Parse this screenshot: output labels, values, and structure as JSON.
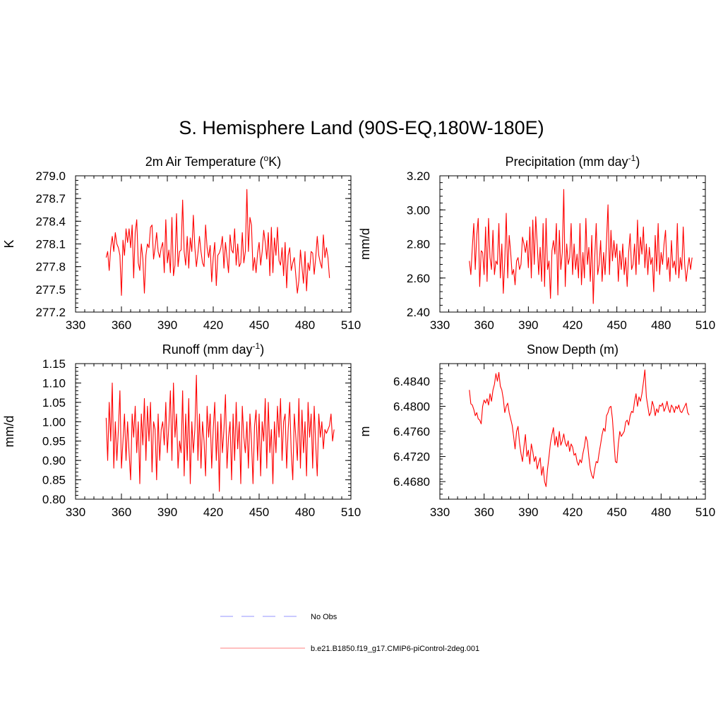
{
  "title": "S. Hemisphere Land (90S-EQ,180W-180E)",
  "legend": [
    {
      "label": "No Obs",
      "color": "#aaaaff",
      "dash": true
    },
    {
      "label": "b.e21.B1850.f19_g17.CMIP6-piControl-2deg.001",
      "color": "#ff9999",
      "dash": false
    }
  ],
  "series_color": "#ff0000",
  "chart_data": [
    {
      "type": "line",
      "title_main": "2m Air Temperature (",
      "title_sup": "o",
      "title_end": "K)",
      "ylabel": "K",
      "xlim": [
        330,
        510
      ],
      "ylim": [
        277.2,
        279.0
      ],
      "xticks": [
        330,
        360,
        390,
        420,
        450,
        480,
        510
      ],
      "xtick_labels": [
        "330",
        "360",
        "390",
        "420",
        "450",
        "480",
        "510"
      ],
      "yticks": [
        277.2,
        277.5,
        277.8,
        278.1,
        278.4,
        278.7,
        279.0
      ],
      "ytick_labels": [
        "277.2",
        "277.5",
        "277.8",
        "278.1",
        "278.4",
        "278.7",
        "279.0"
      ],
      "x_start": 350,
      "values": [
        277.92,
        278.0,
        277.75,
        278.05,
        278.2,
        278.0,
        278.25,
        278.1,
        278.05,
        277.95,
        277.42,
        278.15,
        277.95,
        278.3,
        278.12,
        278.3,
        278.05,
        278.35,
        277.65,
        278.25,
        278.42,
        277.85,
        277.75,
        278.1,
        277.9,
        277.45,
        277.95,
        278.1,
        278.05,
        278.32,
        278.35,
        277.9,
        278.05,
        278.25,
        278.0,
        277.92,
        278.05,
        278.12,
        277.72,
        278.42,
        277.85,
        278.02,
        277.72,
        278.45,
        277.68,
        277.82,
        278.5,
        277.8,
        278.0,
        278.02,
        278.68,
        278.0,
        277.82,
        278.2,
        277.78,
        278.18,
        278.0,
        278.48,
        278.05,
        277.8,
        277.98,
        278.2,
        278.0,
        277.85,
        277.8,
        278.35,
        278.05,
        277.92,
        278.08,
        277.6,
        277.92,
        278.12,
        277.55,
        277.95,
        277.98,
        278.05,
        278.2,
        277.78,
        278.12,
        277.92,
        277.72,
        278.22,
        278.02,
        277.98,
        278.3,
        277.82,
        278.1,
        277.8,
        277.85,
        278.25,
        277.85,
        278.0,
        278.82,
        278.0,
        278.45,
        278.35,
        277.75,
        277.92,
        277.72,
        277.98,
        278.12,
        277.82,
        278.0,
        278.28,
        278.12,
        277.9,
        278.25,
        277.68,
        278.32,
        277.72,
        278.18,
        277.95,
        278.32,
        277.88,
        277.82,
        278.05,
        277.68,
        278.12,
        277.52,
        277.95,
        278.05,
        277.75,
        277.85,
        277.92,
        277.68,
        277.45,
        277.62,
        278.02,
        277.8,
        277.58,
        278.0,
        277.48,
        277.85,
        277.75,
        278.0,
        277.98,
        277.7,
        277.92,
        278.2,
        277.95,
        277.85,
        277.78,
        278.22,
        277.92,
        278.05,
        277.92,
        277.65
      ]
    },
    {
      "type": "line",
      "title_main": "Precipitation (mm day",
      "title_sup": "-1",
      "title_end": ")",
      "ylabel": "mm/d",
      "xlim": [
        330,
        510
      ],
      "ylim": [
        2.4,
        3.2
      ],
      "xticks": [
        330,
        360,
        390,
        420,
        450,
        480,
        510
      ],
      "xtick_labels": [
        "330",
        "360",
        "390",
        "420",
        "450",
        "480",
        "510"
      ],
      "yticks": [
        2.4,
        2.6,
        2.8,
        3.0,
        3.2
      ],
      "ytick_labels": [
        "2.40",
        "2.60",
        "2.80",
        "3.00",
        "3.20"
      ],
      "x_start": 350,
      "values": [
        2.7,
        2.62,
        2.78,
        2.92,
        2.65,
        2.85,
        2.95,
        2.55,
        2.76,
        2.75,
        2.62,
        2.9,
        2.58,
        2.95,
        2.72,
        2.65,
        2.88,
        2.62,
        2.7,
        2.68,
        2.92,
        2.6,
        2.8,
        2.51,
        2.7,
        2.98,
        2.6,
        2.85,
        2.75,
        2.62,
        2.65,
        2.56,
        2.7,
        2.72,
        2.65,
        2.68,
        2.84,
        2.8,
        2.75,
        2.82,
        2.66,
        2.9,
        2.6,
        2.94,
        2.68,
        2.96,
        2.8,
        2.62,
        2.78,
        2.58,
        2.92,
        2.55,
        2.95,
        2.65,
        2.7,
        2.48,
        2.76,
        2.82,
        2.74,
        2.92,
        2.5,
        2.88,
        2.65,
        2.75,
        3.12,
        2.55,
        2.8,
        2.68,
        2.72,
        2.92,
        2.62,
        2.8,
        2.65,
        2.74,
        2.6,
        2.92,
        2.56,
        2.75,
        2.6,
        2.95,
        2.68,
        2.78,
        2.58,
        2.85,
        2.45,
        2.72,
        2.92,
        2.62,
        2.68,
        2.82,
        2.58,
        2.75,
        2.62,
        2.82,
        3.03,
        2.62,
        2.88,
        2.7,
        2.82,
        2.72,
        2.8,
        2.58,
        2.76,
        2.65,
        2.8,
        2.62,
        2.72,
        2.55,
        2.75,
        2.86,
        2.65,
        2.68,
        2.8,
        2.62,
        2.94,
        2.68,
        2.84,
        2.74,
        2.9,
        2.66,
        2.8,
        2.62,
        2.78,
        2.68,
        2.72,
        2.52,
        2.85,
        2.64,
        2.92,
        2.62,
        2.75,
        2.68,
        2.8,
        2.88,
        2.65,
        2.72,
        2.58,
        2.82,
        2.66,
        2.7,
        2.62,
        2.92,
        2.6,
        2.72,
        2.65,
        2.9,
        2.68,
        2.58,
        2.66,
        2.72,
        2.65,
        2.72
      ]
    },
    {
      "type": "line",
      "title_main": "Runoff (mm day",
      "title_sup": "-1",
      "title_end": ")",
      "ylabel": "mm/d",
      "xlim": [
        330,
        510
      ],
      "ylim": [
        0.8,
        1.15
      ],
      "xticks": [
        330,
        360,
        390,
        420,
        450,
        480,
        510
      ],
      "xtick_labels": [
        "330",
        "360",
        "390",
        "420",
        "450",
        "480",
        "510"
      ],
      "yticks": [
        0.8,
        0.85,
        0.9,
        0.95,
        1.0,
        1.05,
        1.1,
        1.15
      ],
      "ytick_labels": [
        "0.80",
        "0.85",
        "0.90",
        "0.95",
        "1.00",
        "1.05",
        "1.10",
        "1.15"
      ],
      "x_start": 350,
      "values": [
        1.01,
        0.9,
        1.05,
        0.95,
        1.1,
        0.88,
        1.0,
        0.9,
        0.98,
        1.08,
        0.88,
        0.95,
        1.02,
        0.9,
        1.0,
        0.92,
        0.85,
        1.02,
        0.96,
        1.04,
        0.92,
        1.0,
        0.84,
        1.02,
        0.94,
        1.06,
        0.9,
        1.04,
        0.95,
        1.05,
        0.87,
        1.0,
        0.98,
        0.85,
        1.02,
        0.9,
        0.98,
        1.0,
        0.94,
        1.05,
        0.92,
        0.99,
        1.08,
        0.9,
        1.1,
        0.96,
        1.02,
        0.88,
        0.95,
        0.92,
        1.08,
        0.86,
        1.02,
        0.9,
        1.06,
        0.84,
        1.0,
        0.92,
        0.98,
        1.12,
        0.9,
        1.02,
        0.88,
        1.0,
        0.95,
        0.86,
        1.04,
        0.96,
        1.02,
        0.88,
        0.98,
        1.05,
        0.9,
        1.0,
        0.82,
        1.02,
        0.92,
        0.98,
        1.07,
        0.88,
        0.96,
        1.0,
        0.85,
        1.02,
        0.9,
        1.05,
        0.93,
        1.0,
        0.84,
        1.04,
        0.96,
        0.92,
        1.0,
        0.88,
        1.02,
        0.95,
        0.84,
        0.99,
        1.03,
        0.9,
        1.02,
        0.86,
        1.0,
        0.95,
        1.06,
        0.88,
        1.05,
        0.92,
        0.98,
        0.84,
        1.0,
        0.92,
        1.04,
        0.96,
        1.06,
        0.9,
        1.0,
        1.02,
        0.88,
        0.98,
        1.05,
        0.92,
        0.85,
        1.02,
        0.96,
        0.9,
        1.06,
        0.88,
        1.03,
        0.92,
        1.0,
        0.86,
        1.05,
        0.96,
        1.02,
        0.88,
        1.04,
        0.94,
        0.86,
        1.02,
        0.96,
        1.0,
        0.93,
        0.98,
        0.97,
        0.98,
        0.99,
        1.02,
        0.95,
        0.98
      ]
    },
    {
      "type": "line",
      "title_main": "Snow Depth (m)",
      "title_sup": "",
      "title_end": "",
      "ylabel": "m",
      "xlim": [
        330,
        510
      ],
      "ylim": [
        6.4652,
        6.4868
      ],
      "xticks": [
        330,
        360,
        390,
        420,
        450,
        480,
        510
      ],
      "xtick_labels": [
        "330",
        "360",
        "390",
        "420",
        "450",
        "480",
        "510"
      ],
      "yticks": [
        6.468,
        6.472,
        6.476,
        6.48,
        6.484
      ],
      "ytick_labels": [
        "6.4680",
        "6.4720",
        "6.4760",
        "6.4800",
        "6.4840"
      ],
      "x_start": 350,
      "values": [
        6.4826,
        6.4804,
        6.4802,
        6.4795,
        6.4785,
        6.479,
        6.478,
        6.4778,
        6.4772,
        6.48,
        6.481,
        6.4805,
        6.4812,
        6.4802,
        6.482,
        6.4808,
        6.4826,
        6.4835,
        6.4852,
        6.484,
        6.4854,
        6.4832,
        6.4826,
        6.4812,
        6.479,
        6.48,
        6.4805,
        6.479,
        6.478,
        6.477,
        6.4752,
        6.4732,
        6.476,
        6.4768,
        6.4742,
        6.4725,
        6.4712,
        6.4735,
        6.4755,
        6.472,
        6.473,
        6.4708,
        6.474,
        6.4728,
        6.4712,
        6.472,
        6.47,
        6.471,
        6.4718,
        6.469,
        6.4704,
        6.468,
        6.4672,
        6.47,
        6.472,
        6.4742,
        6.4755,
        6.4766,
        6.4738,
        6.4752,
        6.4735,
        6.476,
        6.4738,
        6.4745,
        6.4756,
        6.4742,
        6.4736,
        6.4745,
        6.4728,
        6.474,
        6.4735,
        6.4722,
        6.4725,
        6.4712,
        6.4706,
        6.4715,
        6.471,
        6.4725,
        6.4736,
        6.4752,
        6.4744,
        6.472,
        6.47,
        6.469,
        6.4685,
        6.47,
        6.4712,
        6.471,
        6.4726,
        6.474,
        6.4755,
        6.4765,
        6.476,
        6.4785,
        6.479,
        6.4798,
        6.48,
        6.478,
        6.4745,
        6.4712,
        6.471,
        6.474,
        6.476,
        6.4752,
        6.4756,
        6.476,
        6.4775,
        6.4778,
        6.477,
        6.4785,
        6.4792,
        6.479,
        6.4808,
        6.482,
        6.48,
        6.4815,
        6.4808,
        6.482,
        6.4838,
        6.4858,
        6.4815,
        6.48,
        6.4785,
        6.479,
        6.4808,
        6.48,
        6.4785,
        6.4796,
        6.479,
        6.4802,
        6.48,
        6.4805,
        6.4792,
        6.4798,
        6.4808,
        6.4796,
        6.479,
        6.4802,
        6.4798,
        6.479,
        6.48,
        6.4796,
        6.4802,
        6.4792,
        6.479,
        6.4795,
        6.48,
        6.4805,
        6.479,
        6.4786
      ]
    }
  ]
}
